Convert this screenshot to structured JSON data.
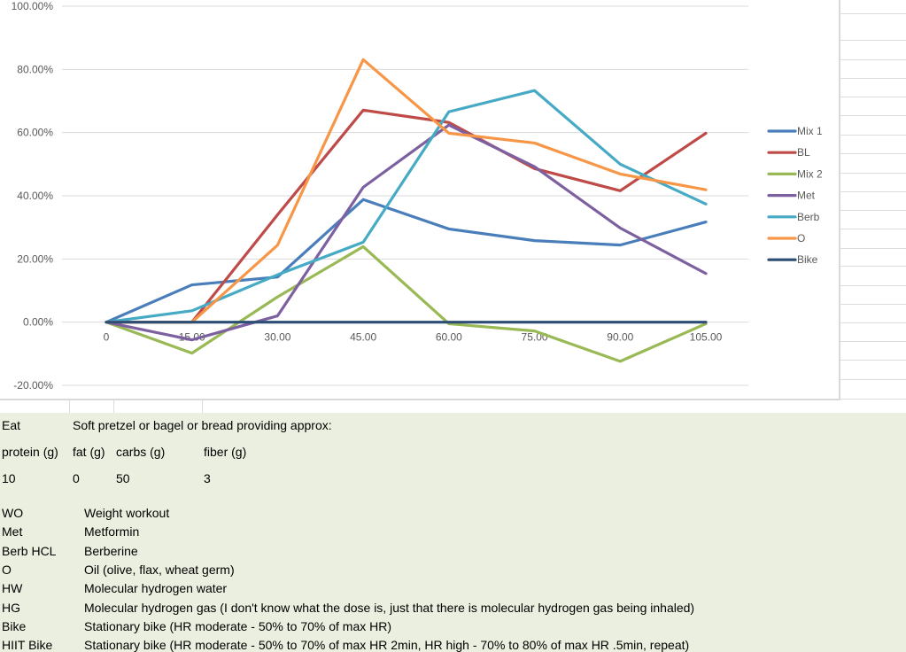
{
  "chart_data": {
    "type": "line",
    "title": "",
    "xlabel": "",
    "ylabel": "",
    "x": [
      0,
      15,
      30,
      45,
      60,
      75,
      90,
      105
    ],
    "x_tick_labels": [
      "0",
      "15.00",
      "30.00",
      "45.00",
      "60.00",
      "75.00",
      "90.00",
      "105.00"
    ],
    "ylim": [
      -20,
      100
    ],
    "y_ticks": [
      -20,
      0,
      20,
      40,
      60,
      80,
      100
    ],
    "y_tick_labels": [
      "-20.00%",
      "0.00%",
      "20.00%",
      "40.00%",
      "60.00%",
      "80.00%",
      "100.00%"
    ],
    "grid": true,
    "legend_position": "right",
    "series": [
      {
        "name": "Mix 1",
        "color": "#4a7ebb",
        "values": [
          0,
          11.8,
          14.3,
          38.8,
          29.5,
          25.8,
          24.4,
          31.7
        ]
      },
      {
        "name": "BL",
        "color": "#be4b48",
        "values": [
          0,
          0,
          34.0,
          67.1,
          63.2,
          48.6,
          41.6,
          59.8
        ]
      },
      {
        "name": "Mix 2",
        "color": "#98b954",
        "values": [
          0,
          -9.8,
          8.0,
          23.9,
          -0.5,
          -2.8,
          -12.4,
          -0.5
        ]
      },
      {
        "name": "Met",
        "color": "#7d60a0",
        "values": [
          0,
          -5.6,
          2.0,
          42.7,
          62.4,
          49.2,
          29.8,
          15.4
        ]
      },
      {
        "name": "Berb",
        "color": "#46aac5",
        "values": [
          0,
          3.6,
          15.0,
          25.3,
          66.6,
          73.3,
          50.0,
          37.4
        ]
      },
      {
        "name": "O",
        "color": "#f79646",
        "values": [
          0,
          0,
          24.4,
          83.1,
          59.8,
          56.7,
          46.9,
          41.9
        ]
      },
      {
        "name": "Bike",
        "color": "#2c4d75",
        "values": [
          0,
          0,
          0,
          0,
          0,
          0,
          0,
          0
        ]
      }
    ]
  },
  "notes": {
    "row1": {
      "col_a": "Eat",
      "col_b": "Soft pretzel or bagel or bread providing approx:"
    },
    "headers": [
      "protein (g)",
      "fat (g)",
      "carbs (g)",
      "fiber (g)"
    ],
    "values": [
      "10",
      "0",
      "50",
      "3"
    ],
    "glossary": [
      {
        "abbr": "WO",
        "meaning": "Weight workout"
      },
      {
        "abbr": "Met",
        "meaning": "Metformin"
      },
      {
        "abbr": "Berb HCL",
        "meaning": "Berberine"
      },
      {
        "abbr": "O",
        "meaning": "Oil (olive, flax, wheat germ)"
      },
      {
        "abbr": "HW",
        "meaning": "Molecular hydrogen water"
      },
      {
        "abbr": "HG",
        "meaning": "Molecular hydrogen gas (I don't know what the dose is, just that there is molecular hydrogen gas being inhaled)"
      },
      {
        "abbr": "Bike",
        "meaning": "Stationary bike (HR moderate - 50% to 70% of max HR)"
      },
      {
        "abbr": "HIIT Bike",
        "meaning": "Stationary bike (HR moderate - 50% to 70% of max HR 2min, HR high - 70% to 80% of max HR .5min, repeat)"
      }
    ]
  }
}
